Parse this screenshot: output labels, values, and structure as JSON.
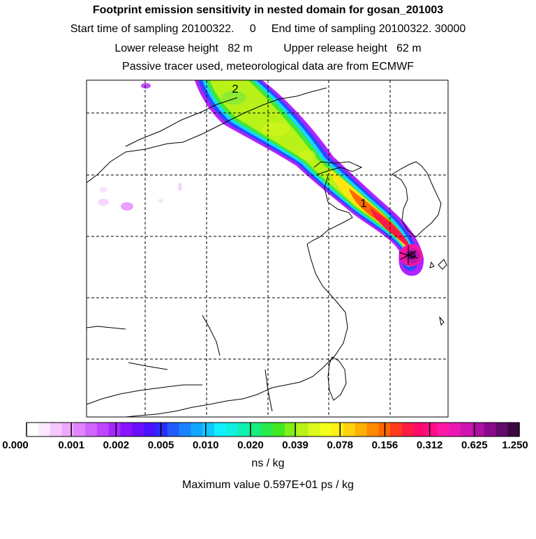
{
  "header": {
    "title": "Footprint emission sensitivity in nested domain for gosan_201003",
    "sampling": "Start time of sampling 20100322.     0     End time of sampling 20100322. 30000",
    "release": "Lower release height   82 m          Upper release height   62 m",
    "tracer": "Passive tracer used, meteorological data are from ECMWF"
  },
  "map": {
    "markers": [
      "2",
      "1"
    ]
  },
  "colorbar": {
    "colors": [
      "#ffffff",
      "#fce8ff",
      "#f5c8ff",
      "#eea8ff",
      "#e085ff",
      "#d066ff",
      "#bf46ff",
      "#a628ff",
      "#8a14ff",
      "#6a10ff",
      "#4a12ff",
      "#2c2cff",
      "#1e5cff",
      "#1a82ff",
      "#12a6ff",
      "#10c8ff",
      "#10f0ff",
      "#10f0e0",
      "#10f0b0",
      "#18ee80",
      "#28ea4a",
      "#40e820",
      "#80ee18",
      "#b8f218",
      "#dcf81c",
      "#f4ff1c",
      "#ffee14",
      "#ffd20c",
      "#ffb004",
      "#ff8a00",
      "#ff6600",
      "#ff3c1c",
      "#ff1a46",
      "#ff0a6a",
      "#ff0c88",
      "#ff1aa6",
      "#ea18b2",
      "#d014b0",
      "#b010a2",
      "#8a0a8c",
      "#620a6a",
      "#3c0840"
    ],
    "tick_labels": [
      "0.000",
      "0.001",
      "0.002",
      "0.005",
      "0.010",
      "0.020",
      "0.039",
      "0.078",
      "0.156",
      "0.312",
      "0.625",
      "1.250"
    ],
    "units": "ns / kg"
  },
  "max_value_text": "Maximum value  0.597E+01 ps / kg"
}
